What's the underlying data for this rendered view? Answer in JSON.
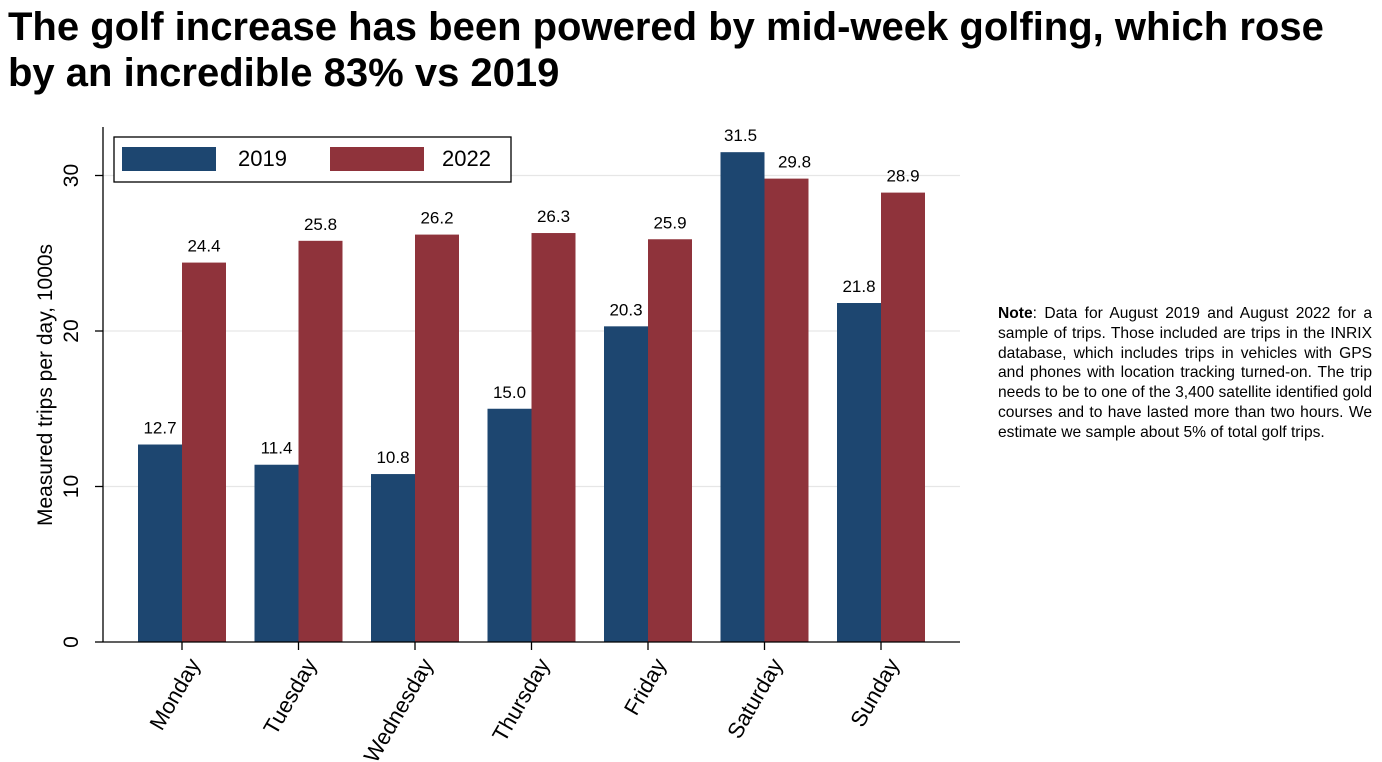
{
  "title": "The golf increase has been powered by mid-week golfing, which rose by an incredible 83% vs 2019",
  "note": {
    "label": "Note",
    "text": ": Data for August 2019 and August 2022 for a sample of trips. Those included are trips in the INRIX database, which includes trips in vehicles with GPS and phones with location tracking turned-on. The trip needs to be to one of the 3,400 satellite identified gold courses and to have lasted more than two hours. We estimate we sample about 5% of total golf trips."
  },
  "colors": {
    "series_2019": "#1d4670",
    "series_2022": "#8f333b",
    "grid": "#e6e6e6",
    "axis": "#000000"
  },
  "chart_data": {
    "type": "bar",
    "title": "",
    "xlabel": "",
    "ylabel": "Measured trips per day, 1000s",
    "ylim": [
      0,
      33
    ],
    "yticks": [
      0,
      10,
      20,
      30
    ],
    "grid": true,
    "legend_position": "top-left",
    "categories": [
      "Monday",
      "Tuesday",
      "Wednesday",
      "Thursday",
      "Friday",
      "Saturday",
      "Sunday"
    ],
    "series": [
      {
        "name": "2019",
        "values": [
          12.7,
          11.4,
          10.8,
          15.0,
          20.3,
          31.5,
          21.8
        ],
        "labels": [
          "12.7",
          "11.4",
          "10.8",
          "15.0",
          "20.3",
          "31.5",
          "21.8"
        ]
      },
      {
        "name": "2022",
        "values": [
          24.4,
          25.8,
          26.2,
          26.3,
          25.9,
          29.8,
          28.9
        ],
        "labels": [
          "24.4",
          "25.8",
          "26.2",
          "26.3",
          "25.9",
          "29.8",
          "28.9"
        ]
      }
    ]
  }
}
